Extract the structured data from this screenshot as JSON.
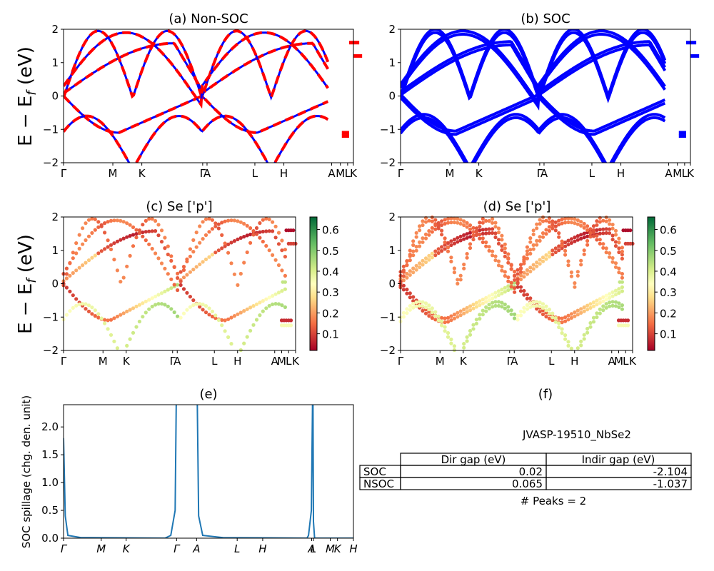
{
  "figure": {
    "ylabel_band": "E − E",
    "ylabel_sub": "f",
    "ylabel_unit": " (eV)"
  },
  "colors": {
    "nonsoc_a": "#ff0000",
    "nonsoc_b": "#0000ff",
    "soc": "#0000ff",
    "spillage": "#1f77b4",
    "colormap": "RdYlGn"
  },
  "panels": {
    "a": {
      "title": "(a) Non-SOC",
      "ylim": [
        -2,
        2
      ],
      "yticks": [
        "2",
        "1",
        "0",
        "−1",
        "−2"
      ],
      "kpath": [
        "Γ",
        "M",
        "K",
        "Γ",
        "A",
        "L",
        "H",
        "A",
        "M",
        "L",
        "K"
      ]
    },
    "b": {
      "title": "(b) SOC",
      "ylim": [
        -2,
        2
      ],
      "yticks": [
        "2",
        "1",
        "0",
        "−1",
        "−2"
      ],
      "kpath": [
        "Γ",
        "M",
        "K",
        "Γ",
        "A",
        "L",
        "H",
        "A",
        "M",
        "L",
        "K"
      ]
    },
    "c": {
      "title": "(c)  Se ['p']",
      "ylim": [
        -2,
        2
      ],
      "yticks": [
        "2",
        "1",
        "0",
        "−1",
        "−2"
      ],
      "kpath": [
        "Γ",
        "M",
        "K",
        "Γ",
        "A",
        "L",
        "H",
        "A",
        "M",
        "L",
        "K"
      ],
      "colorbar_ticks": [
        "0.6",
        "0.5",
        "0.4",
        "0.3",
        "0.2",
        "0.1"
      ],
      "colorbar_range": [
        0.02,
        0.66
      ]
    },
    "d": {
      "title": "(d) Se ['p']",
      "ylim": [
        -2,
        2
      ],
      "yticks": [
        "2",
        "1",
        "0",
        "−1",
        "−2"
      ],
      "kpath": [
        "Γ",
        "M",
        "K",
        "Γ",
        "A",
        "L",
        "H",
        "A",
        "M",
        "L",
        "K"
      ],
      "colorbar_ticks": [
        "0.6",
        "0.5",
        "0.4",
        "0.3",
        "0.2",
        "0.1"
      ],
      "colorbar_range": [
        0.02,
        0.66
      ]
    },
    "e": {
      "title": "(e)",
      "ylabel": "SOC spillage (chg. den. unit)",
      "yticks": [
        "0.0",
        "0.5",
        "1.0",
        "1.5",
        "2.0"
      ],
      "ylim": [
        0,
        2.4
      ],
      "kpath": [
        "Γ",
        "M",
        "K",
        "Γ",
        "A",
        "L",
        "H",
        "A",
        "L",
        "M",
        "K",
        "H"
      ]
    },
    "f": {
      "title": "(f)"
    }
  },
  "table": {
    "title": "JVASP-19510_NbSe2",
    "headers": [
      "Dir gap (eV)",
      "Indir gap (eV)"
    ],
    "rows": [
      {
        "label": "SOC",
        "dir": "0.02",
        "indir": "-2.104"
      },
      {
        "label": "NSOC",
        "dir": "0.065",
        "indir": "-1.037"
      }
    ],
    "peaks": "# Peaks = 2"
  },
  "chart_data": [
    {
      "type": "line",
      "title": "(a) Non-SOC",
      "xlabel": "",
      "ylabel": "E − E_f (eV)",
      "ylim": [
        -2,
        2
      ],
      "x_ticks": [
        "Γ",
        "M",
        "K",
        "Γ",
        "A",
        "L",
        "H",
        "A",
        "M",
        "L",
        "K"
      ],
      "series": [
        {
          "values": [
            0.0,
            0.8,
            1.6,
            1.5,
            1.0,
            0.4,
            0.0,
            0.8,
            1.6,
            1.5,
            1.0,
            1.6
          ]
        },
        {
          "values": [
            0.0,
            -1.1,
            -0.6,
            0.0,
            0.1,
            -1.1,
            -0.6,
            0.0,
            -1.2,
            1.2,
            -1.2
          ]
        },
        {
          "values": [
            0.0,
            2.0,
            1.0,
            0.0,
            2.0,
            1.0,
            0.0
          ]
        }
      ]
    },
    {
      "type": "line",
      "title": "(b) SOC",
      "ylabel": "E − E_f (eV)",
      "ylim": [
        -2,
        2
      ],
      "x_ticks": [
        "Γ",
        "M",
        "K",
        "Γ",
        "A",
        "L",
        "H",
        "A",
        "M",
        "L",
        "K"
      ]
    },
    {
      "type": "scatter",
      "title": "(c)  Se ['p']",
      "ylabel": "E − E_f (eV)",
      "ylim": [
        -2,
        2
      ],
      "x_ticks": [
        "Γ",
        "M",
        "K",
        "Γ",
        "A",
        "L",
        "H",
        "A",
        "M",
        "L",
        "K"
      ],
      "color_range": [
        0.02,
        0.66
      ]
    },
    {
      "type": "scatter",
      "title": "(d) Se ['p']",
      "ylabel": "E − E_f (eV)",
      "ylim": [
        -2,
        2
      ],
      "x_ticks": [
        "Γ",
        "M",
        "K",
        "Γ",
        "A",
        "L",
        "H",
        "A",
        "M",
        "L",
        "K"
      ],
      "color_range": [
        0.02,
        0.66
      ]
    },
    {
      "type": "line",
      "title": "(e)",
      "ylabel": "SOC spillage (chg. den. unit)",
      "ylim": [
        0,
        2.4
      ],
      "x_ticks": [
        "Γ",
        "M",
        "K",
        "Γ",
        "A",
        "L",
        "H",
        "A",
        "L",
        "M",
        "K",
        "H"
      ],
      "series": [
        {
          "values": [
            1.8,
            0.05,
            0.0,
            0.0,
            0.0,
            2.4,
            2.4,
            0.05,
            0.0,
            0.0,
            2.4,
            0.0,
            0.0
          ]
        }
      ]
    },
    {
      "type": "table",
      "title": "JVASP-19510_NbSe2",
      "columns": [
        "Dir gap (eV)",
        "Indir gap (eV)"
      ],
      "rows": [
        [
          "SOC",
          "0.02",
          "-2.104"
        ],
        [
          "NSOC",
          "0.065",
          "-1.037"
        ]
      ]
    }
  ]
}
